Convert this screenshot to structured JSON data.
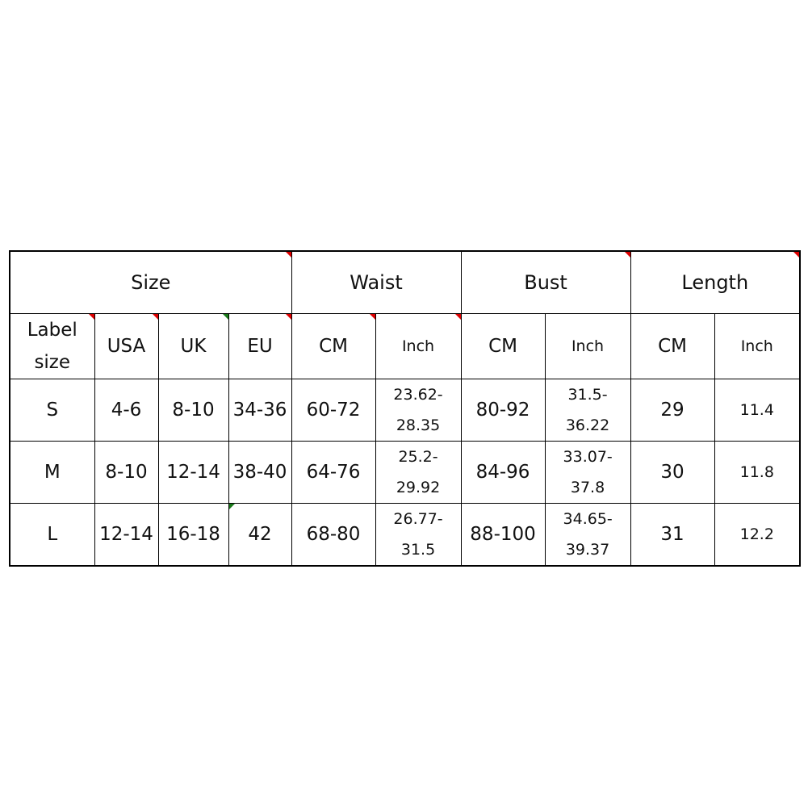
{
  "header": {
    "size": "Size",
    "waist": "Waist",
    "bust": "Bust",
    "length": "Length"
  },
  "subheader": {
    "label_size": "Label size",
    "usa": "USA",
    "uk": "UK",
    "eu": "EU",
    "waist_cm": "CM",
    "waist_inch": "Inch",
    "bust_cm": "CM",
    "bust_inch": "Inch",
    "length_cm": "CM",
    "length_inch": "Inch"
  },
  "rows": [
    {
      "label": "S",
      "usa": "4-6",
      "uk": "8-10",
      "eu": "34-36",
      "waist_cm": "60-72",
      "waist_inch": "23.62-28.35",
      "bust_cm": "80-92",
      "bust_inch": "31.5-36.22",
      "length_cm": "29",
      "length_inch": "11.4"
    },
    {
      "label": "M",
      "usa": "8-10",
      "uk": "12-14",
      "eu": "38-40",
      "waist_cm": "64-76",
      "waist_inch": "25.2-29.92",
      "bust_cm": "84-96",
      "bust_inch": "33.07-37.8",
      "length_cm": "30",
      "length_inch": "11.8"
    },
    {
      "label": "L",
      "usa": "12-14",
      "uk": "16-18",
      "eu": "42",
      "waist_cm": "68-80",
      "waist_inch": "26.77-31.5",
      "bust_cm": "88-100",
      "bust_inch": "34.65-39.37",
      "length_cm": "31",
      "length_inch": "12.2"
    }
  ],
  "colors": {
    "comment_marker": "#d00000",
    "note_marker": "#1a7a1a"
  }
}
